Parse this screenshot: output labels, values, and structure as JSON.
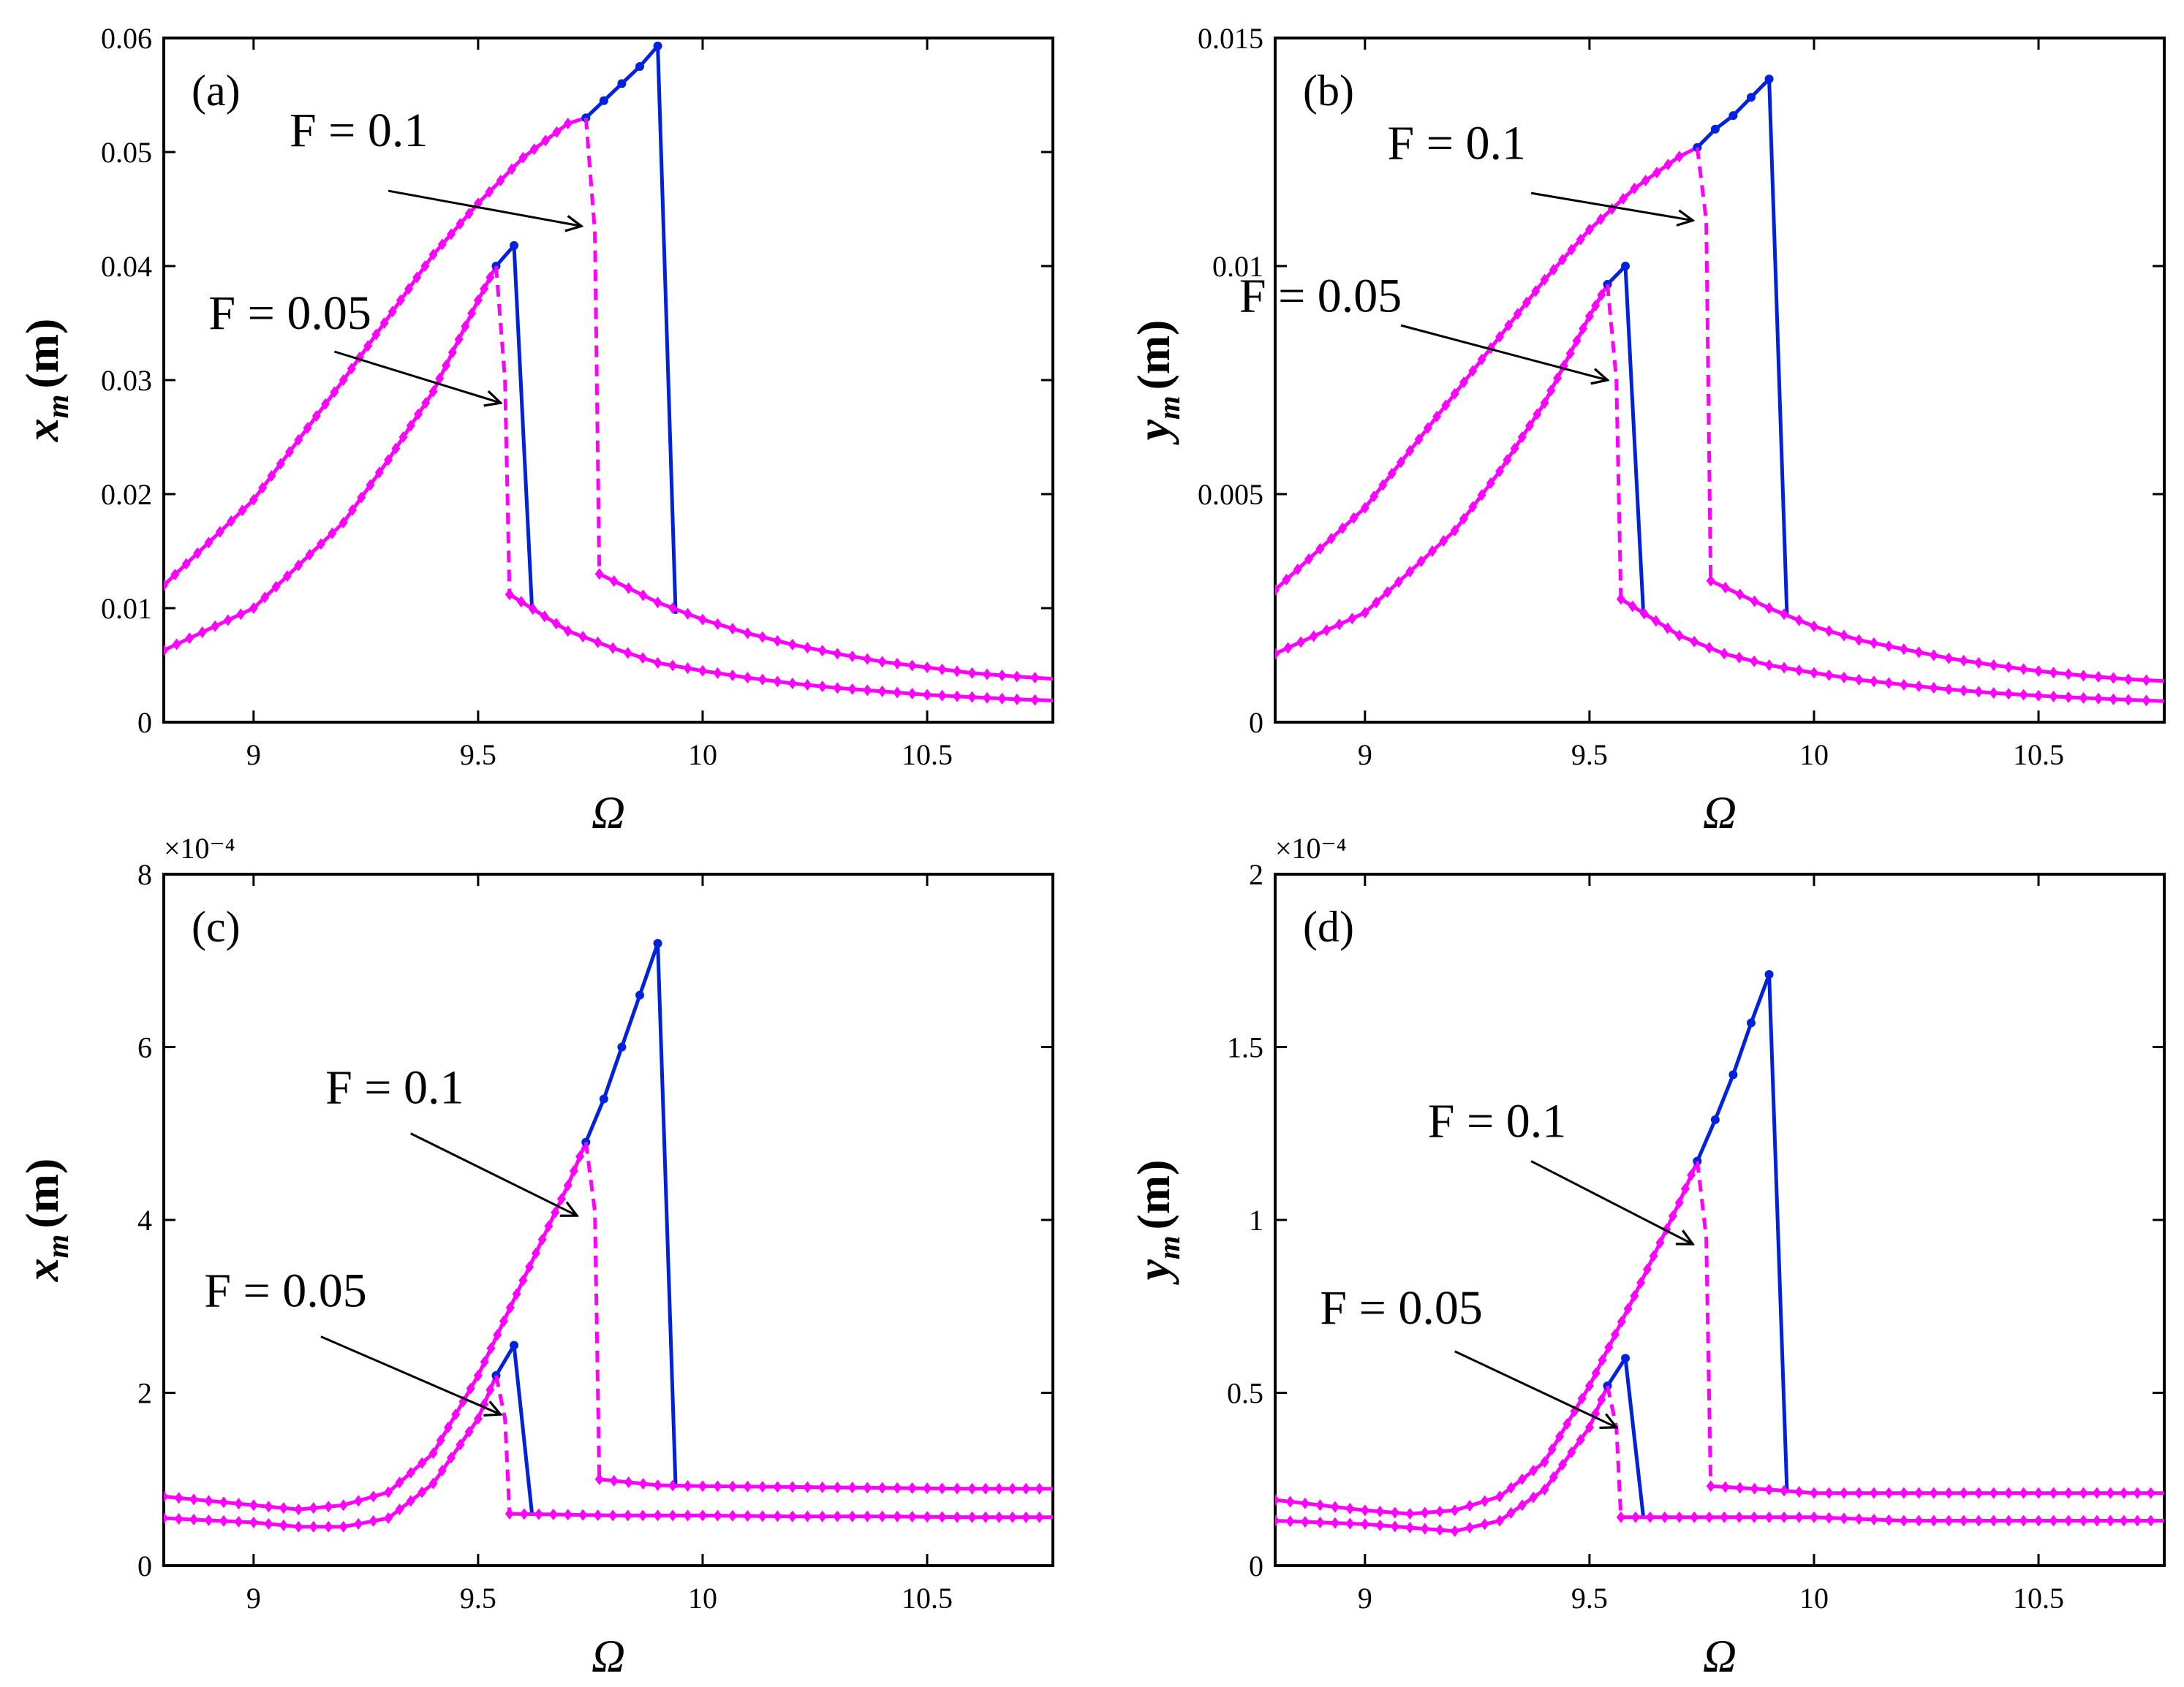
{
  "colors": {
    "stable": "#ff00ff",
    "unstable": "#0022dd",
    "axis": "#000000"
  },
  "chart_data": [
    {
      "type": "line",
      "panel": "(a)",
      "xlabel": "Ω",
      "ylabel_var": "x",
      "ylabel_sub": "m",
      "ylabel_unit": "(m)",
      "xlim": [
        8.8,
        10.78
      ],
      "ylim": [
        0,
        0.06
      ],
      "xticks": [
        9,
        9.5,
        10,
        10.5
      ],
      "xtick_labels": [
        "9",
        "9.5",
        "10",
        "10.5"
      ],
      "yticks": [
        0,
        0.01,
        0.02,
        0.03,
        0.04,
        0.05,
        0.06
      ],
      "ytick_labels": [
        "0",
        "0.01",
        "0.02",
        "0.03",
        "0.04",
        "0.05",
        "0.06"
      ],
      "exponent_label": "",
      "series": [
        {
          "name": "F = 0.1 upper stable",
          "style": "stable",
          "x": [
            8.8,
            9.0,
            9.2,
            9.4,
            9.5,
            9.6,
            9.7,
            9.74
          ],
          "y": [
            0.012,
            0.0195,
            0.03,
            0.041,
            0.0455,
            0.0495,
            0.0525,
            0.053
          ]
        },
        {
          "name": "F = 0.1 unstable",
          "style": "unstable",
          "x": [
            9.74,
            9.78,
            9.82,
            9.86,
            9.9,
            9.94
          ],
          "y": [
            0.053,
            0.0545,
            0.056,
            0.0575,
            0.0593,
            0.0095
          ]
        },
        {
          "name": "F = 0.1 jump-down",
          "style": "dashed",
          "x": [
            9.74,
            9.76,
            9.77
          ],
          "y": [
            0.053,
            0.043,
            0.013
          ]
        },
        {
          "name": "F = 0.1 lower stable",
          "style": "stable",
          "x": [
            9.77,
            9.9,
            10.0,
            10.1,
            10.2,
            10.3,
            10.4,
            10.5,
            10.6,
            10.7,
            10.78
          ],
          "y": [
            0.013,
            0.0105,
            0.009,
            0.0078,
            0.0068,
            0.006,
            0.0053,
            0.0048,
            0.0043,
            0.004,
            0.0038
          ]
        },
        {
          "name": "F = 0.05 upper stable",
          "style": "stable",
          "x": [
            8.8,
            9.0,
            9.2,
            9.3,
            9.4,
            9.5,
            9.54
          ],
          "y": [
            0.0063,
            0.01,
            0.0175,
            0.023,
            0.029,
            0.037,
            0.04
          ]
        },
        {
          "name": "F = 0.05 unstable",
          "style": "unstable",
          "x": [
            9.54,
            9.58,
            9.62
          ],
          "y": [
            0.04,
            0.0418,
            0.01
          ]
        },
        {
          "name": "F = 0.05 jump-down",
          "style": "dashed",
          "x": [
            9.54,
            9.56,
            9.57
          ],
          "y": [
            0.04,
            0.03,
            0.0112
          ]
        },
        {
          "name": "F = 0.05 lower stable",
          "style": "stable",
          "x": [
            9.57,
            9.7,
            9.8,
            9.9,
            10.0,
            10.1,
            10.2,
            10.3,
            10.4,
            10.5,
            10.6,
            10.7,
            10.78
          ],
          "y": [
            0.0112,
            0.008,
            0.0065,
            0.0052,
            0.0045,
            0.0039,
            0.0034,
            0.003,
            0.0027,
            0.0024,
            0.0022,
            0.002,
            0.0019
          ]
        }
      ],
      "annotations": [
        {
          "text": "F = 0.1",
          "x": 9.08,
          "y": 0.0505,
          "arrow_from": [
            9.3,
            0.0466
          ],
          "arrow_to": [
            9.73,
            0.0435
          ]
        },
        {
          "text": "F = 0.05",
          "x": 8.9,
          "y": 0.0345,
          "arrow_from": [
            9.18,
            0.0325
          ],
          "arrow_to": [
            9.55,
            0.028
          ]
        }
      ]
    },
    {
      "type": "line",
      "panel": "(b)",
      "xlabel": "Ω",
      "ylabel_var": "y",
      "ylabel_sub": "m",
      "ylabel_unit": "(m)",
      "xlim": [
        8.8,
        10.78
      ],
      "ylim": [
        0,
        0.015
      ],
      "xticks": [
        9,
        9.5,
        10,
        10.5
      ],
      "xtick_labels": [
        "9",
        "9.5",
        "10",
        "10.5"
      ],
      "yticks": [
        0,
        0.005,
        0.01,
        0.015
      ],
      "ytick_labels": [
        "0",
        "0.005",
        "0.01",
        "0.015"
      ],
      "exponent_label": "",
      "series": [
        {
          "name": "F = 0.1 upper stable",
          "style": "stable",
          "x": [
            8.8,
            9.0,
            9.2,
            9.4,
            9.5,
            9.6,
            9.7,
            9.74
          ],
          "y": [
            0.0029,
            0.0047,
            0.0072,
            0.0097,
            0.0108,
            0.0117,
            0.0124,
            0.0126
          ]
        },
        {
          "name": "F = 0.1 unstable",
          "style": "unstable",
          "x": [
            9.74,
            9.78,
            9.82,
            9.86,
            9.9,
            9.94
          ],
          "y": [
            0.0126,
            0.013,
            0.0133,
            0.0137,
            0.0141,
            0.0023
          ]
        },
        {
          "name": "F = 0.1 jump-down",
          "style": "dashed",
          "x": [
            9.74,
            9.76,
            9.77
          ],
          "y": [
            0.0126,
            0.011,
            0.0031
          ]
        },
        {
          "name": "F = 0.1 lower stable",
          "style": "stable",
          "x": [
            9.77,
            9.9,
            10.0,
            10.1,
            10.2,
            10.3,
            10.4,
            10.5,
            10.6,
            10.7,
            10.78
          ],
          "y": [
            0.0031,
            0.0025,
            0.0021,
            0.0018,
            0.0016,
            0.0014,
            0.00125,
            0.00112,
            0.00102,
            0.00094,
            0.0009
          ]
        },
        {
          "name": "F = 0.05 upper stable",
          "style": "stable",
          "x": [
            8.8,
            9.0,
            9.2,
            9.3,
            9.4,
            9.5,
            9.54
          ],
          "y": [
            0.0015,
            0.0024,
            0.0042,
            0.0055,
            0.007,
            0.0089,
            0.0096
          ]
        },
        {
          "name": "F = 0.05 unstable",
          "style": "unstable",
          "x": [
            9.54,
            9.58,
            9.62
          ],
          "y": [
            0.0096,
            0.01,
            0.0024
          ]
        },
        {
          "name": "F = 0.05 jump-down",
          "style": "dashed",
          "x": [
            9.54,
            9.56,
            9.57
          ],
          "y": [
            0.0096,
            0.0075,
            0.0027
          ]
        },
        {
          "name": "F = 0.05 lower stable",
          "style": "stable",
          "x": [
            9.57,
            9.7,
            9.8,
            9.9,
            10.0,
            10.1,
            10.2,
            10.3,
            10.4,
            10.5,
            10.6,
            10.7,
            10.78
          ],
          "y": [
            0.0027,
            0.0019,
            0.0015,
            0.00125,
            0.00108,
            0.00093,
            0.00082,
            0.00072,
            0.00064,
            0.00058,
            0.00053,
            0.00049,
            0.00046
          ]
        }
      ],
      "annotations": [
        {
          "text": "F = 0.1",
          "x": 9.05,
          "y": 0.01235,
          "arrow_from": [
            9.37,
            0.0116
          ],
          "arrow_to": [
            9.73,
            0.011
          ]
        },
        {
          "text": "F = 0.05",
          "x": 8.72,
          "y": 0.009,
          "arrow_from": [
            9.08,
            0.0087
          ],
          "arrow_to": [
            9.54,
            0.0075
          ]
        }
      ]
    },
    {
      "type": "line",
      "panel": "(c)",
      "xlabel": "Ω",
      "ylabel_var": "x",
      "ylabel_sub": "m",
      "ylabel_unit": "(m)",
      "xlim": [
        8.8,
        10.78
      ],
      "ylim": [
        0,
        8
      ],
      "xticks": [
        9,
        9.5,
        10,
        10.5
      ],
      "xtick_labels": [
        "9",
        "9.5",
        "10",
        "10.5"
      ],
      "yticks": [
        0,
        2,
        4,
        6,
        8
      ],
      "ytick_labels": [
        "0",
        "2",
        "4",
        "6",
        "8"
      ],
      "exponent_label": "×10⁻⁴",
      "series": [
        {
          "name": "F = 0.1 upper stable",
          "style": "stable",
          "x": [
            8.8,
            9.0,
            9.1,
            9.2,
            9.3,
            9.4,
            9.5,
            9.6,
            9.7,
            9.74
          ],
          "y": [
            0.8,
            0.7,
            0.65,
            0.7,
            0.85,
            1.3,
            2.2,
            3.3,
            4.4,
            4.9
          ]
        },
        {
          "name": "F = 0.1 unstable",
          "style": "unstable",
          "x": [
            9.74,
            9.78,
            9.82,
            9.86,
            9.9,
            9.94
          ],
          "y": [
            4.9,
            5.4,
            6.0,
            6.6,
            7.2,
            0.9
          ]
        },
        {
          "name": "F = 0.1 jump-down",
          "style": "dashed",
          "x": [
            9.74,
            9.76,
            9.77
          ],
          "y": [
            4.9,
            4.1,
            1.0
          ]
        },
        {
          "name": "F = 0.1 lower stable",
          "style": "stable",
          "x": [
            9.77,
            9.9,
            10.0,
            10.2,
            10.4,
            10.6,
            10.78
          ],
          "y": [
            1.0,
            0.93,
            0.92,
            0.91,
            0.9,
            0.89,
            0.89
          ]
        },
        {
          "name": "F = 0.05 upper stable",
          "style": "stable",
          "x": [
            8.8,
            9.0,
            9.1,
            9.2,
            9.3,
            9.4,
            9.5,
            9.54
          ],
          "y": [
            0.55,
            0.5,
            0.45,
            0.45,
            0.55,
            0.95,
            1.7,
            2.2
          ]
        },
        {
          "name": "F = 0.05 unstable",
          "style": "unstable",
          "x": [
            9.54,
            9.58,
            9.62
          ],
          "y": [
            2.2,
            2.55,
            0.6
          ]
        },
        {
          "name": "F = 0.05 jump-down",
          "style": "dashed",
          "x": [
            9.54,
            9.56,
            9.57
          ],
          "y": [
            2.2,
            1.7,
            0.6
          ]
        },
        {
          "name": "F = 0.05 lower stable",
          "style": "stable",
          "x": [
            9.57,
            9.7,
            9.8,
            10.0,
            10.2,
            10.4,
            10.6,
            10.78
          ],
          "y": [
            0.6,
            0.59,
            0.58,
            0.58,
            0.57,
            0.57,
            0.56,
            0.56
          ]
        }
      ],
      "annotations": [
        {
          "text": "F = 0.1",
          "x": 9.16,
          "y": 5.35,
          "arrow_from": [
            9.35,
            5.0
          ],
          "arrow_to": [
            9.72,
            4.05
          ]
        },
        {
          "text": "F = 0.05",
          "x": 8.89,
          "y": 3.0,
          "arrow_from": [
            9.15,
            2.65
          ],
          "arrow_to": [
            9.55,
            1.75
          ]
        }
      ]
    },
    {
      "type": "line",
      "panel": "(d)",
      "xlabel": "Ω",
      "ylabel_var": "y",
      "ylabel_sub": "m",
      "ylabel_unit": "(m)",
      "xlim": [
        8.8,
        10.78
      ],
      "ylim": [
        0,
        2
      ],
      "xticks": [
        9,
        9.5,
        10,
        10.5
      ],
      "xtick_labels": [
        "9",
        "9.5",
        "10",
        "10.5"
      ],
      "yticks": [
        0,
        0.5,
        1,
        1.5,
        2
      ],
      "ytick_labels": [
        "0",
        "0.5",
        "1",
        "1.5",
        "2"
      ],
      "exponent_label": "×10⁻⁴",
      "series": [
        {
          "name": "F = 0.1 upper stable",
          "style": "stable",
          "x": [
            8.8,
            9.0,
            9.1,
            9.2,
            9.3,
            9.4,
            9.5,
            9.6,
            9.7,
            9.74
          ],
          "y": [
            0.19,
            0.16,
            0.15,
            0.16,
            0.2,
            0.3,
            0.52,
            0.78,
            1.05,
            1.17
          ]
        },
        {
          "name": "F = 0.1 unstable",
          "style": "unstable",
          "x": [
            9.74,
            9.78,
            9.82,
            9.86,
            9.9,
            9.94
          ],
          "y": [
            1.17,
            1.29,
            1.42,
            1.57,
            1.71,
            0.21
          ]
        },
        {
          "name": "F = 0.1 jump-down",
          "style": "dashed",
          "x": [
            9.74,
            9.76,
            9.77
          ],
          "y": [
            1.17,
            0.95,
            0.23
          ]
        },
        {
          "name": "F = 0.1 lower stable",
          "style": "stable",
          "x": [
            9.77,
            9.9,
            10.0,
            10.2,
            10.4,
            10.6,
            10.78
          ],
          "y": [
            0.23,
            0.22,
            0.21,
            0.21,
            0.21,
            0.21,
            0.21
          ]
        },
        {
          "name": "F = 0.05 upper stable",
          "style": "stable",
          "x": [
            8.8,
            9.0,
            9.1,
            9.2,
            9.3,
            9.4,
            9.5,
            9.54
          ],
          "y": [
            0.13,
            0.12,
            0.11,
            0.1,
            0.13,
            0.22,
            0.4,
            0.52
          ]
        },
        {
          "name": "F = 0.05 unstable",
          "style": "unstable",
          "x": [
            9.54,
            9.58,
            9.62
          ],
          "y": [
            0.52,
            0.6,
            0.14
          ]
        },
        {
          "name": "F = 0.05 jump-down",
          "style": "dashed",
          "x": [
            9.54,
            9.56,
            9.57
          ],
          "y": [
            0.52,
            0.4,
            0.14
          ]
        },
        {
          "name": "F = 0.05 lower stable",
          "style": "stable",
          "x": [
            9.57,
            9.7,
            9.8,
            10.0,
            10.2,
            10.4,
            10.6,
            10.78
          ],
          "y": [
            0.14,
            0.14,
            0.14,
            0.14,
            0.13,
            0.13,
            0.13,
            0.13
          ]
        }
      ],
      "annotations": [
        {
          "text": "F = 0.1",
          "x": 9.14,
          "y": 1.24,
          "arrow_from": [
            9.37,
            1.17
          ],
          "arrow_to": [
            9.73,
            0.93
          ]
        },
        {
          "text": "F = 0.05",
          "x": 8.9,
          "y": 0.7,
          "arrow_from": [
            9.2,
            0.62
          ],
          "arrow_to": [
            9.56,
            0.4
          ]
        }
      ]
    }
  ]
}
